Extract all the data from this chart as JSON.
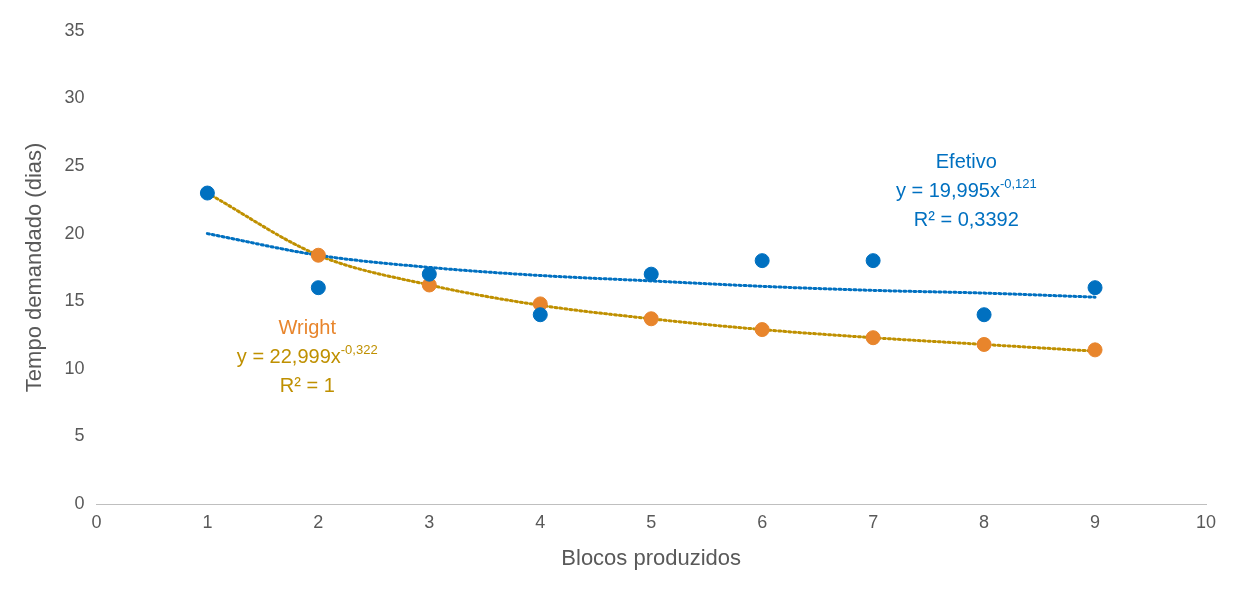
{
  "chart_data": {
    "type": "scatter",
    "xlabel": "Blocos produzidos",
    "ylabel": "Tempo demandado (dias)",
    "x": [
      1,
      2,
      3,
      4,
      5,
      6,
      7,
      8,
      9
    ],
    "xlim": [
      0,
      10
    ],
    "xticks": [
      0,
      1,
      2,
      3,
      4,
      5,
      6,
      7,
      8,
      9,
      10
    ],
    "ylim": [
      0,
      35
    ],
    "yticks": [
      0,
      5,
      10,
      15,
      20,
      25,
      30,
      35
    ],
    "grid": false,
    "legend": false,
    "marker": "circle",
    "series": [
      {
        "name": "Efetivo",
        "color": "#0070c0",
        "values": [
          23,
          16,
          17,
          14,
          17,
          18,
          18,
          14,
          16
        ]
      },
      {
        "name": "Wright",
        "color": "#e8852c",
        "values": [
          null,
          18.4,
          16.2,
          14.8,
          13.7,
          12.9,
          12.3,
          11.8,
          11.4
        ]
      },
      {
        "type": "line",
        "line_style": "dotted",
        "marker": "none",
        "color": "#0070c0",
        "values": [
          20.0,
          18.4,
          17.5,
          16.9,
          16.5,
          16.1,
          15.8,
          15.6,
          15.3
        ]
      },
      {
        "type": "line",
        "line_style": "dotted",
        "marker": "none",
        "color": "#bf9000",
        "values": [
          23.0,
          18.4,
          16.2,
          14.7,
          13.7,
          12.9,
          12.3,
          11.8,
          11.3
        ]
      }
    ],
    "annotations": [
      "y = 19,995x$^{-0,121}$",
      "R² = 0,3392",
      "y = 22,999x$^{-0,322}$",
      "R² = 1"
    ]
  }
}
